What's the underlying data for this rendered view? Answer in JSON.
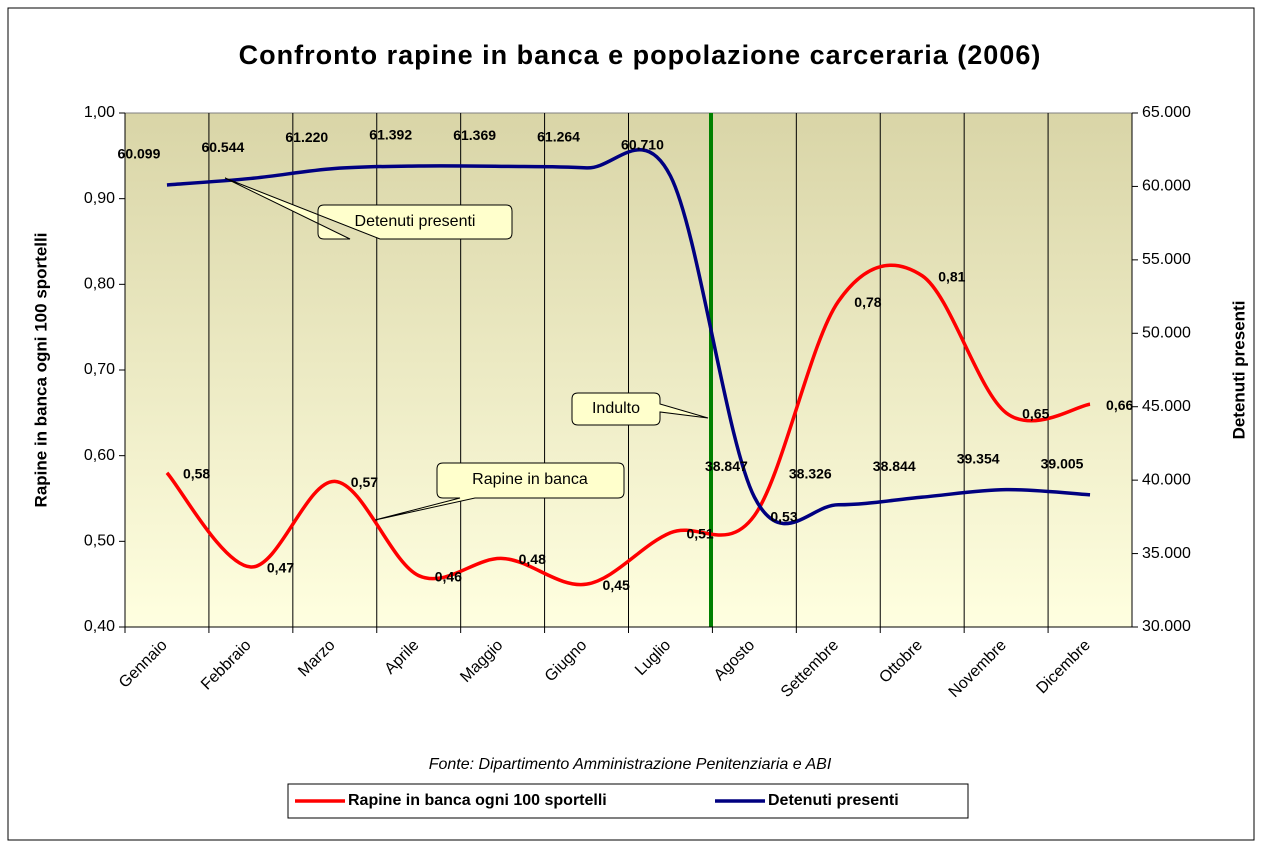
{
  "chart_data": {
    "type": "line",
    "title": "Confronto rapine in banca e popolazione carceraria (2006)",
    "ylabel": "Rapine in banca ogni 100 sportelli",
    "y2label": "Detenuti presenti",
    "source": "Fonte: Dipartimento Amministrazione Penitenziaria e ABI",
    "annotations": [
      "Detenuti presenti",
      "Rapine in banca",
      "Indulto"
    ],
    "categories": [
      "Gennaio",
      "Febbraio",
      "Marzo",
      "Aprile",
      "Maggio",
      "Giugno",
      "Luglio",
      "Agosto",
      "Settembre",
      "Ottobre",
      "Novembre",
      "Dicembre"
    ],
    "series": [
      {
        "name": "Rapine in banca ogni 100 sportelli",
        "color": "#ff0000",
        "axis": "y",
        "values": [
          0.58,
          0.47,
          0.57,
          0.46,
          0.48,
          0.45,
          0.51,
          0.53,
          0.78,
          0.81,
          0.65,
          0.66
        ],
        "value_labels": [
          "0,58",
          "0,47",
          "0,57",
          "0,46",
          "0,48",
          "0,45",
          "0,51",
          "0,53",
          "0,78",
          "0,81",
          "0,65",
          "0,66"
        ]
      },
      {
        "name": "Detenuti presenti",
        "color": "#000080",
        "axis": "y2",
        "values": [
          60099,
          60544,
          61220,
          61392,
          61369,
          61264,
          60710,
          38847,
          38326,
          38844,
          39354,
          39005
        ],
        "value_labels": [
          "60.099",
          "60.544",
          "61.220",
          "61.392",
          "61.369",
          "61.264",
          "60.710",
          "38.847",
          "38.326",
          "38.844",
          "39.354",
          "39.005"
        ]
      }
    ],
    "ylim": [
      0.4,
      1.0
    ],
    "yticks": [
      {
        "value": 0.4,
        "label": "0,40"
      },
      {
        "value": 0.5,
        "label": "0,50"
      },
      {
        "value": 0.6,
        "label": "0,60"
      },
      {
        "value": 0.7,
        "label": "0,70"
      },
      {
        "value": 0.8,
        "label": "0,80"
      },
      {
        "value": 0.9,
        "label": "0,90"
      },
      {
        "value": 1.0,
        "label": "1,00"
      }
    ],
    "y2lim": [
      30000,
      65000
    ],
    "y2ticks": [
      {
        "value": 30000,
        "label": "30.000"
      },
      {
        "value": 35000,
        "label": "35.000"
      },
      {
        "value": 40000,
        "label": "40.000"
      },
      {
        "value": 45000,
        "label": "45.000"
      },
      {
        "value": 50000,
        "label": "50.000"
      },
      {
        "value": 55000,
        "label": "55.000"
      },
      {
        "value": 60000,
        "label": "60.000"
      },
      {
        "value": 65000,
        "label": "65.000"
      }
    ],
    "grid": false,
    "legend": "bottom"
  }
}
